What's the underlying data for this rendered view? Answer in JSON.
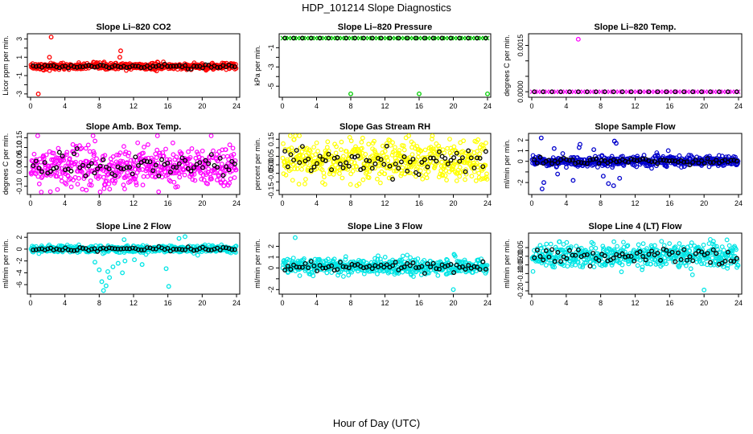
{
  "figure_title": "HDP_101214  Slope Diagnostics",
  "figure_xlabel": "Hour of Day (UTC)",
  "chart_data": [
    {
      "type": "scatter",
      "title": "Slope Li–820 CO2",
      "ylabel": "Licor ppm per min.",
      "xlabel": "",
      "color": "#ff0000",
      "xlim": [
        0,
        24
      ],
      "ylim": [
        -3.1,
        3.3
      ],
      "xticks": [
        0,
        4,
        8,
        12,
        16,
        20,
        24
      ],
      "yticks": [
        -3,
        -2,
        -1,
        0,
        1,
        2,
        3
      ],
      "yticklabels": [
        "-3",
        "",
        "-1",
        "",
        "1",
        "",
        "3"
      ],
      "series_profile": {
        "center": 0.0,
        "noise": 0.18
      },
      "outliers": [
        {
          "x": 2.4,
          "y": 3.2
        },
        {
          "x": 0.9,
          "y": -3.0
        },
        {
          "x": 10.5,
          "y": 1.7
        },
        {
          "x": 10.4,
          "y": 1.0
        },
        {
          "x": 2.2,
          "y": 1.0
        }
      ]
    },
    {
      "type": "scatter",
      "title": "Slope Li–820 Pressure",
      "ylabel": "kPa per min.",
      "xlabel": "",
      "color": "#00cc00",
      "marker": "x",
      "xlim": [
        0,
        24
      ],
      "ylim": [
        -5.9,
        0.2
      ],
      "xticks": [
        0,
        4,
        8,
        12,
        16,
        20,
        24
      ],
      "yticks": [
        -5,
        -4,
        -3,
        -2,
        -1
      ],
      "yticklabels": [
        "-5",
        "",
        "-3",
        "",
        "-1"
      ],
      "series_profile": {
        "center": 0.0,
        "noise": 0.0
      },
      "outliers": [
        {
          "x": 8.0,
          "y": -5.8
        },
        {
          "x": 16.0,
          "y": -5.8
        },
        {
          "x": 24.0,
          "y": -5.8
        }
      ]
    },
    {
      "type": "scatter",
      "title": "Slope Li–820 Temp.",
      "ylabel": "degrees C per min.",
      "xlabel": "",
      "color": "#ff00ff",
      "marker": "x",
      "xlim": [
        0,
        24
      ],
      "ylim": [
        -0.0001,
        0.0018
      ],
      "xticks": [
        0,
        4,
        8,
        12,
        16,
        20,
        24
      ],
      "yticks": [
        0.0,
        0.0005,
        0.001,
        0.0015
      ],
      "yticklabels": [
        "0.0000",
        "",
        "",
        "0.0015"
      ],
      "series_profile": {
        "center": 0.0,
        "noise": 0.0
      },
      "outliers": [
        {
          "x": 5.4,
          "y": 0.0017
        }
      ]
    },
    {
      "type": "scatter",
      "title": "Slope Amb. Box Temp.",
      "ylabel": "degrees C per min.",
      "xlabel": "",
      "color": "#ff00ff",
      "xlim": [
        0,
        24
      ],
      "ylim": [
        -0.13,
        0.16
      ],
      "xticks": [
        0,
        4,
        8,
        12,
        16,
        20,
        24
      ],
      "yticks": [
        -0.1,
        -0.05,
        0.0,
        0.05,
        0.1,
        0.15
      ],
      "yticklabels": [
        "-0.10",
        "",
        "0.00",
        "0.05",
        "0.10",
        "0.15"
      ],
      "series_profile": {
        "center": 0.0,
        "noise": 0.055
      },
      "outliers": []
    },
    {
      "type": "scatter",
      "title": "Slope Gas Stream RH",
      "ylabel": "percent per min.",
      "xlabel": "",
      "color": "#ffff00",
      "xlim": [
        0,
        24
      ],
      "ylim": [
        -0.16,
        0.17
      ],
      "xticks": [
        0,
        4,
        8,
        12,
        16,
        20,
        24
      ],
      "yticks": [
        -0.15,
        -0.1,
        -0.05,
        0.0,
        0.05,
        0.1,
        0.15
      ],
      "yticklabels": [
        "-0.15",
        "",
        "-0.05",
        "0.00",
        "0.05",
        "",
        "0.15"
      ],
      "series_profile": {
        "center": 0.02,
        "noise": 0.06
      },
      "outliers": []
    },
    {
      "type": "scatter",
      "title": "Slope Sample Flow",
      "ylabel": "ml/min per min.",
      "xlabel": "",
      "color": "#0000cc",
      "xlim": [
        0,
        24
      ],
      "ylim": [
        -2.9,
        2.4
      ],
      "xticks": [
        0,
        4,
        8,
        12,
        16,
        20,
        24
      ],
      "yticks": [
        -2,
        -1,
        0,
        1,
        2
      ],
      "yticklabels": [
        "-2",
        "",
        "0",
        "1",
        "2"
      ],
      "series_profile": {
        "center": 0.0,
        "noise": 0.25
      },
      "outliers": [
        {
          "x": 1.1,
          "y": 2.2
        },
        {
          "x": 1.2,
          "y": -2.6
        },
        {
          "x": 1.4,
          "y": -2.0
        },
        {
          "x": 2.6,
          "y": 1.2
        },
        {
          "x": 5.6,
          "y": 1.6
        },
        {
          "x": 5.5,
          "y": 1.3
        },
        {
          "x": 4.8,
          "y": -1.8
        },
        {
          "x": 8.9,
          "y": -2.1
        },
        {
          "x": 9.5,
          "y": -2.3
        },
        {
          "x": 9.8,
          "y": 1.7
        },
        {
          "x": 9.6,
          "y": 1.9
        },
        {
          "x": 10.2,
          "y": -1.6
        },
        {
          "x": 8.3,
          "y": -1.4
        },
        {
          "x": 7.2,
          "y": 1.1
        },
        {
          "x": 3.0,
          "y": -1.2
        }
      ]
    },
    {
      "type": "scatter",
      "title": "Slope Line 2 Flow",
      "ylabel": "ml/min per min.",
      "xlabel": "",
      "color": "#00e5e5",
      "xlim": [
        0,
        24
      ],
      "ylim": [
        -7.2,
        2.3
      ],
      "xticks": [
        0,
        4,
        8,
        12,
        16,
        20,
        24
      ],
      "yticks": [
        -6,
        -4,
        -2,
        0,
        2
      ],
      "yticklabels": [
        "-6",
        "-4",
        "-2",
        "0",
        "2"
      ],
      "series_profile": {
        "center": 0.0,
        "noise": 0.3
      },
      "outliers": [
        {
          "x": 8.5,
          "y": -7.0
        },
        {
          "x": 8.8,
          "y": -6.2
        },
        {
          "x": 8.3,
          "y": -5.5
        },
        {
          "x": 9.2,
          "y": -4.8
        },
        {
          "x": 9.0,
          "y": -3.8
        },
        {
          "x": 8.0,
          "y": -3.5
        },
        {
          "x": 9.6,
          "y": -3.0
        },
        {
          "x": 10.2,
          "y": -2.4
        },
        {
          "x": 11.0,
          "y": -2.0
        },
        {
          "x": 10.7,
          "y": -4.0
        },
        {
          "x": 16.1,
          "y": -6.3
        },
        {
          "x": 15.8,
          "y": -3.3
        },
        {
          "x": 7.5,
          "y": -2.2
        },
        {
          "x": 12.1,
          "y": -1.8
        },
        {
          "x": 13.0,
          "y": -2.6
        },
        {
          "x": 17.3,
          "y": 1.8
        },
        {
          "x": 18.0,
          "y": 2.1
        },
        {
          "x": 10.9,
          "y": 1.6
        }
      ]
    },
    {
      "type": "scatter",
      "title": "Slope Line 3 Flow",
      "ylabel": "ml/min per min.",
      "xlabel": "",
      "color": "#00e5e5",
      "xlim": [
        0,
        24
      ],
      "ylim": [
        -2.2,
        3.0
      ],
      "xticks": [
        0,
        4,
        8,
        12,
        16,
        20,
        24
      ],
      "yticks": [
        -2,
        -1,
        0,
        1,
        2
      ],
      "yticklabels": [
        "-2",
        "",
        "0",
        "1",
        "2"
      ],
      "series_profile": {
        "center": 0.15,
        "noise": 0.35
      },
      "outliers": [
        {
          "x": 1.5,
          "y": 2.8
        },
        {
          "x": 20.0,
          "y": -2.0
        }
      ]
    },
    {
      "type": "scatter",
      "title": "Slope Line 4 (LT) Flow",
      "ylabel": "ml/min per min.",
      "xlabel": "",
      "color": "#00e5e5",
      "xlim": [
        0,
        24
      ],
      "ylim": [
        -0.205,
        0.12
      ],
      "xticks": [
        0,
        4,
        8,
        12,
        16,
        20,
        24
      ],
      "yticks": [
        -0.2,
        -0.15,
        -0.1,
        -0.05,
        0.0,
        0.05
      ],
      "yticklabels": [
        "-0.20",
        "",
        "-0.10",
        "-0.05",
        "0.00",
        "0.05"
      ],
      "series_profile": {
        "center": 0.0,
        "noise": 0.035
      },
      "outliers": [
        {
          "x": 20.0,
          "y": -0.195
        }
      ]
    }
  ]
}
